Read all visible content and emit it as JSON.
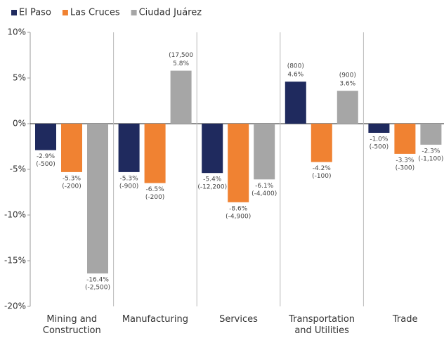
{
  "chart_data": {
    "type": "bar",
    "categories": [
      "Mining and Construction",
      "Manufacturing",
      "Services",
      "Transportation and Utilities",
      "Trade"
    ],
    "series": [
      {
        "name": "El Paso",
        "color": "#1f2a5e",
        "values": [
          -2.9,
          -5.3,
          -5.4,
          4.6,
          -1.0
        ],
        "value_labels": [
          "-2.9%",
          "-5.3%",
          "-5.4%",
          "4.6%",
          "-1.0%"
        ],
        "count_labels": [
          "(-500)",
          "(-900)",
          "(-12,200)",
          "(800)",
          "(-500)"
        ]
      },
      {
        "name": "Las Cruces",
        "color": "#f08232",
        "values": [
          -5.3,
          -6.5,
          -8.6,
          -4.2,
          -3.3
        ],
        "value_labels": [
          "-5.3%",
          "-6.5%",
          "-8.6%",
          "-4.2%",
          "-3.3%"
        ],
        "count_labels": [
          "(-200)",
          "(-200)",
          "(-4,900)",
          "(-100)",
          "(-300)"
        ]
      },
      {
        "name": "Ciudad Juárez",
        "color": "#a6a6a6",
        "values": [
          -16.4,
          5.8,
          -6.1,
          3.6,
          -2.3
        ],
        "value_labels": [
          "-16.4%",
          "5.8%",
          "-6.1%",
          "3.6%",
          "-2.3%"
        ],
        "count_labels": [
          "(-2,500)",
          "(17,500",
          "(-4,400)",
          "(900)",
          "(-1,100)"
        ]
      }
    ],
    "ylim": [
      -20,
      10
    ],
    "yticks": [
      {
        "value": -20,
        "label": "-20%"
      },
      {
        "value": -15,
        "label": "-15%"
      },
      {
        "value": -10,
        "label": "-10%"
      },
      {
        "value": -5,
        "label": "-5%"
      },
      {
        "value": 0,
        "label": "0%"
      },
      {
        "value": 5,
        "label": "5%"
      },
      {
        "value": 10,
        "label": "10%"
      }
    ],
    "legend": "top-left"
  }
}
